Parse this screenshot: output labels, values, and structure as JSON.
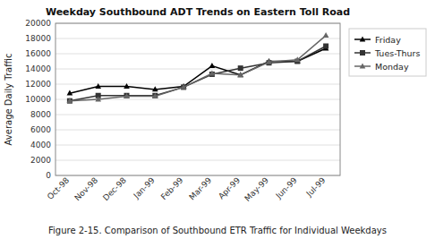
{
  "chart_data": {
    "type": "line",
    "title": "Weekday Southbound ADT Trends on Eastern Toll Road",
    "ylabel": "Average Daily Traffic",
    "caption": "Figure 2-15. Comparison of Southbound ETR Traffic for Individual Weekdays",
    "categories": [
      "Oct-98",
      "Nov-98",
      "Dec-98",
      "Jan-99",
      "Feb-99",
      "Mar-99",
      "Apr-99",
      "May-99",
      "Jun-99",
      "Jul-99"
    ],
    "series": [
      {
        "name": "Friday",
        "color": "#000000",
        "marker": "triangle",
        "line_style": "solid",
        "values": [
          10800,
          11700,
          11700,
          11300,
          11700,
          14400,
          13200,
          15000,
          15000,
          16700
        ]
      },
      {
        "name": "Tues-Thurs",
        "color": "#333333",
        "marker": "square",
        "line_style": "solid",
        "values": [
          9800,
          10500,
          10500,
          10500,
          11600,
          13300,
          14100,
          14800,
          15000,
          17000
        ]
      },
      {
        "name": "Monday",
        "color": "#666666",
        "marker": "triangle",
        "line_style": "solid",
        "values": [
          9800,
          10000,
          10400,
          10400,
          11600,
          13400,
          13200,
          14900,
          15200,
          18400
        ]
      }
    ],
    "ylim": [
      0,
      20000
    ],
    "yticks": [
      0,
      2000,
      4000,
      6000,
      8000,
      10000,
      12000,
      14000,
      16000,
      18000,
      20000
    ],
    "grid": true,
    "legend": "right"
  }
}
